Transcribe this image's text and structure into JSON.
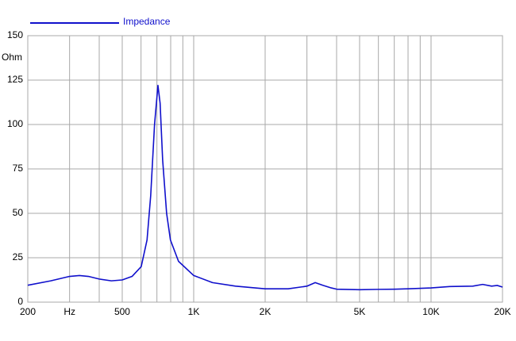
{
  "chart_data": {
    "type": "line",
    "y_label": "Ohm",
    "xscale": "log",
    "grid": true,
    "x": [
      200,
      250,
      300,
      330,
      360,
      400,
      450,
      500,
      550,
      601,
      636,
      659,
      684,
      707,
      722,
      740,
      769,
      798,
      863,
      1000,
      1200,
      1500,
      2000,
      2500,
      3000,
      3250,
      3500,
      3800,
      4000,
      5000,
      6000,
      7000,
      8000,
      10000,
      12000,
      15000,
      16500,
      18000,
      19000,
      20000
    ],
    "series": [
      {
        "name": "Impedance",
        "color": "#1010cc",
        "values": [
          9.5,
          12,
          14.5,
          15,
          14.5,
          13,
          12,
          12.5,
          14.5,
          20,
          35,
          60,
          100,
          122,
          112,
          80,
          50,
          35,
          23,
          15,
          11,
          9,
          7.5,
          7.5,
          9,
          11,
          9.5,
          8,
          7.3,
          7,
          7.2,
          7.3,
          7.5,
          8,
          8.8,
          9,
          10,
          9,
          9.4,
          8.5
        ]
      }
    ],
    "xlim": [
      200,
      20000
    ],
    "xticks": [
      200,
      {
        "value": 300,
        "label": "Hz"
      },
      500,
      {
        "value": 1000,
        "label": "1K"
      },
      {
        "value": 2000,
        "label": "2K"
      },
      {
        "value": 5000,
        "label": "5K"
      },
      {
        "value": 10000,
        "label": "10K"
      },
      {
        "value": 20000,
        "label": "20K"
      }
    ],
    "xminor": [
      400,
      600,
      700,
      800,
      900,
      3000,
      4000,
      6000,
      7000,
      8000,
      9000
    ],
    "ylim": [
      0,
      150
    ],
    "yticks": [
      0,
      25,
      50,
      75,
      100,
      125,
      150
    ]
  }
}
